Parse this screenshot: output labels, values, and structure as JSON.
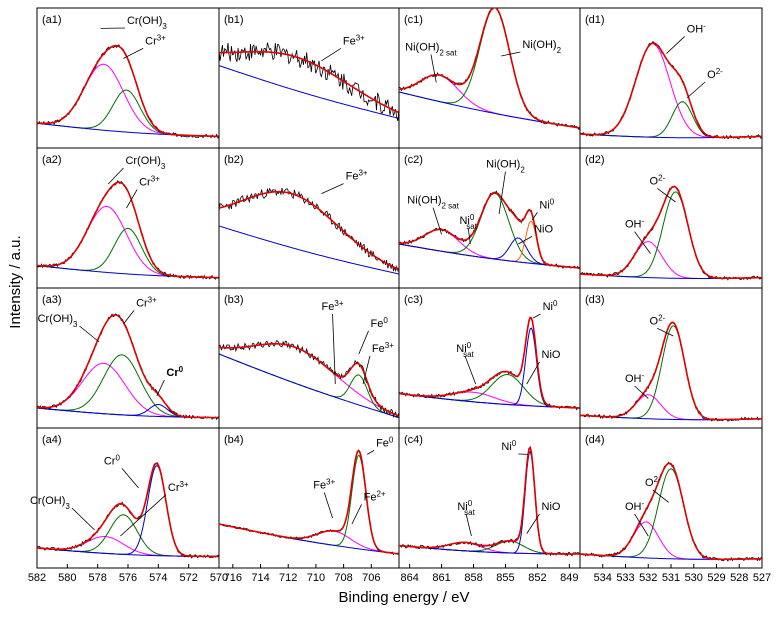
{
  "figure": {
    "ylabel": "Intensity / a.u.",
    "xlabel": "Binding energy / eV"
  },
  "chart_data": [
    {
      "id": "a",
      "type": "line",
      "xlim": [
        582,
        570
      ],
      "xticks": [
        "582",
        "580",
        "578",
        "576",
        "574",
        "572",
        "570"
      ],
      "rows": [
        {
          "label": "(a1)",
          "annotations": [
            {
              "text": "Cr(OH)",
              "sub": "3",
              "sup": "",
              "x": 577.8,
              "y": 0.93,
              "tx": 576.2,
              "ty": 0.95,
              "pos": "right"
            },
            {
              "text": "Cr",
              "sub": "",
              "sup": "3+",
              "x": 576.3,
              "y": 0.68,
              "tx": 575.0,
              "ty": 0.78,
              "pos": "right"
            }
          ],
          "peaks": [
            {
              "c": 577.6,
              "w": 1.3,
              "a": 0.55
            },
            {
              "c": 576.1,
              "w": 0.9,
              "a": 0.35
            }
          ],
          "bg": [
            0.14,
            0.03
          ]
        },
        {
          "label": "(a2)",
          "annotations": [
            {
              "text": "Cr(OH)",
              "sub": "3",
              "sup": "",
              "x": 577.3,
              "y": 0.8,
              "tx": 576.3,
              "ty": 0.95,
              "pos": "right"
            },
            {
              "text": "Cr",
              "sub": "",
              "sup": "3+",
              "x": 576.1,
              "y": 0.6,
              "tx": 575.4,
              "ty": 0.77,
              "pos": "right"
            }
          ],
          "peaks": [
            {
              "c": 577.4,
              "w": 1.3,
              "a": 0.55
            },
            {
              "c": 576.0,
              "w": 0.9,
              "a": 0.38
            }
          ],
          "bg": [
            0.12,
            0.02
          ]
        },
        {
          "label": "(a3)",
          "annotations": [
            {
              "text": "Cr(OH)",
              "sub": "3",
              "sup": "",
              "x": 577.9,
              "y": 0.65,
              "tx": 579.2,
              "ty": 0.8,
              "pos": "left"
            },
            {
              "text": "Cr",
              "sub": "",
              "sup": "3+",
              "x": 576.3,
              "y": 0.8,
              "tx": 575.6,
              "ty": 0.93,
              "pos": "right"
            },
            {
              "text": "Cr",
              "sub": "",
              "sup": "0",
              "x": 574.1,
              "y": 0.2,
              "tx": 573.6,
              "ty": 0.35,
              "pos": "right",
              "bold": true
            }
          ],
          "peaks": [
            {
              "c": 577.6,
              "w": 1.4,
              "a": 0.42
            },
            {
              "c": 576.4,
              "w": 1.2,
              "a": 0.5
            },
            {
              "c": 574.0,
              "w": 0.6,
              "a": 0.1
            }
          ],
          "bg": [
            0.1,
            0.02
          ]
        },
        {
          "label": "(a4)",
          "annotations": [
            {
              "text": "Cr(OH)",
              "sub": "3",
              "sup": "",
              "x": 578.2,
              "y": 0.25,
              "tx": 579.7,
              "ty": 0.45,
              "pos": "left"
            },
            {
              "text": "Cr",
              "sub": "",
              "sup": "0",
              "x": 575.3,
              "y": 0.6,
              "tx": 576.4,
              "ty": 0.78,
              "pos": "left"
            },
            {
              "text": "Cr",
              "sub": "",
              "sup": "3+",
              "x": 576.5,
              "y": 0.2,
              "tx": 573.5,
              "ty": 0.56,
              "pos": "right"
            }
          ],
          "peaks": [
            {
              "c": 577.5,
              "w": 1.2,
              "a": 0.14
            },
            {
              "c": 576.3,
              "w": 0.9,
              "a": 0.33
            },
            {
              "c": 574.1,
              "w": 0.6,
              "a": 0.75
            }
          ],
          "bg": [
            0.1,
            0.03
          ]
        }
      ]
    },
    {
      "id": "b",
      "type": "line",
      "xlim": [
        717,
        704
      ],
      "xticks": [
        "716",
        "714",
        "712",
        "710",
        "708",
        "706"
      ],
      "rows": [
        {
          "label": "(b1)",
          "annotations": [
            {
              "text": "Fe",
              "sub": "",
              "sup": "3+",
              "x": 709.6,
              "y": 0.66,
              "tx": 708.2,
              "ty": 0.78,
              "pos": "right"
            }
          ],
          "peaks": [
            {
              "c": 711.5,
              "w": 4.0,
              "a": 0.28
            }
          ],
          "bg": [
            0.62,
            0.18
          ],
          "noise": 0.08
        },
        {
          "label": "(b2)",
          "annotations": [
            {
              "text": "Fe",
              "sub": "",
              "sup": "3+",
              "x": 709.6,
              "y": 0.72,
              "tx": 708.0,
              "ty": 0.82,
              "pos": "right"
            }
          ],
          "peaks": [
            {
              "c": 711.8,
              "w": 3.5,
              "a": 0.45
            }
          ],
          "bg": [
            0.45,
            0.05
          ],
          "noise": 0.04
        },
        {
          "label": "(b3)",
          "annotations": [
            {
              "text": "Fe",
              "sub": "",
              "sup": "3+",
              "x": 708.6,
              "y": 0.3,
              "tx": 708.8,
              "ty": 0.9,
              "pos": "center"
            },
            {
              "text": "Fe",
              "sub": "",
              "sup": "0",
              "x": 706.9,
              "y": 0.55,
              "tx": 706.2,
              "ty": 0.76,
              "pos": "right"
            },
            {
              "text": "Fe",
              "sub": "",
              "sup": "3+",
              "x": 706.6,
              "y": 0.3,
              "tx": 706.1,
              "ty": 0.55,
              "pos": "right"
            }
          ],
          "peaks": [
            {
              "c": 711.5,
              "w": 3.0,
              "a": 0.3
            },
            {
              "c": 706.9,
              "w": 0.6,
              "a": 0.25
            }
          ],
          "bg": [
            0.55,
            0.02
          ],
          "noise": 0.03
        },
        {
          "label": "(b4)",
          "annotations": [
            {
              "text": "Fe",
              "sub": "",
              "sup": "3+",
              "x": 708.8,
              "y": 0.35,
              "tx": 709.4,
              "ty": 0.58,
              "pos": "center"
            },
            {
              "text": "Fe",
              "sub": "",
              "sup": "2+",
              "x": 707.4,
              "y": 0.3,
              "tx": 706.7,
              "ty": 0.48,
              "pos": "right"
            },
            {
              "text": "Fe",
              "sub": "",
              "sup": "0",
              "x": 706.3,
              "y": 0.88,
              "tx": 705.8,
              "ty": 0.93,
              "pos": "right"
            }
          ],
          "peaks": [
            {
              "c": 708.7,
              "w": 1.2,
              "a": 0.12
            },
            {
              "c": 706.9,
              "w": 0.5,
              "a": 0.78
            }
          ],
          "bg": [
            0.3,
            0.05
          ],
          "noise": 0.01
        }
      ]
    },
    {
      "id": "c",
      "type": "line",
      "xlim": [
        865,
        848
      ],
      "xticks": [
        "864",
        "861",
        "858",
        "855",
        "852",
        "849"
      ],
      "rows": [
        {
          "label": "(c1)",
          "annotations": [
            {
              "text": "Ni(OH)",
              "sub": "2 sat",
              "sup": "",
              "x": 861.5,
              "y": 0.48,
              "tx": 862.0,
              "ty": 0.73,
              "pos": "center"
            },
            {
              "text": "Ni(OH)",
              "sub": "2",
              "sup": "",
              "x": 855.4,
              "y": 0.7,
              "tx": 853.6,
              "ty": 0.75,
              "pos": "right"
            }
          ],
          "peaks": [
            {
              "c": 861.2,
              "w": 1.8,
              "a": 0.22
            },
            {
              "c": 856.0,
              "w": 1.4,
              "a": 0.88
            }
          ],
          "bg": [
            0.4,
            0.1
          ]
        },
        {
          "label": "(c2)",
          "annotations": [
            {
              "text": "Ni(OH)",
              "sub": "2 sat",
              "sup": "",
              "x": 861.0,
              "y": 0.38,
              "tx": 861.8,
              "ty": 0.62,
              "pos": "center"
            },
            {
              "text": "Ni(OH)",
              "sub": "2",
              "sup": "",
              "x": 855.6,
              "y": 0.55,
              "tx": 855.0,
              "ty": 0.92,
              "pos": "center"
            },
            {
              "text": "Ni",
              "sub": "sat",
              "sup": "0",
              "x": 858.3,
              "y": 0.3,
              "tx": 858.5,
              "ty": 0.45,
              "pos": "center"
            },
            {
              "text": "Ni",
              "sub": "",
              "sup": "0",
              "x": 852.5,
              "y": 0.5,
              "tx": 852.0,
              "ty": 0.58,
              "pos": "right"
            },
            {
              "text": "NiO",
              "sub": "",
              "sup": "",
              "x": 853.8,
              "y": 0.3,
              "tx": 852.5,
              "ty": 0.38,
              "pos": "right"
            }
          ],
          "peaks": [
            {
              "c": 861.0,
              "w": 1.6,
              "a": 0.18
            },
            {
              "c": 856.0,
              "w": 1.3,
              "a": 0.55
            },
            {
              "c": 853.8,
              "w": 0.8,
              "a": 0.2
            },
            {
              "c": 852.6,
              "w": 0.5,
              "a": 0.35
            }
          ],
          "bg": [
            0.3,
            0.1
          ]
        },
        {
          "label": "(c3)",
          "annotations": [
            {
              "text": "Ni",
              "sub": "sat",
              "sup": "0",
              "x": 857.8,
              "y": 0.3,
              "tx": 858.8,
              "ty": 0.55,
              "pos": "center"
            },
            {
              "text": "Ni",
              "sub": "",
              "sup": "0",
              "x": 852.4,
              "y": 0.85,
              "tx": 851.7,
              "ty": 0.9,
              "pos": "right"
            },
            {
              "text": "NiO",
              "sub": "",
              "sup": "",
              "x": 853.0,
              "y": 0.3,
              "tx": 851.8,
              "ty": 0.5,
              "pos": "right"
            }
          ],
          "peaks": [
            {
              "c": 858.0,
              "w": 2.0,
              "a": 0.08
            },
            {
              "c": 854.8,
              "w": 1.5,
              "a": 0.25
            },
            {
              "c": 852.6,
              "w": 0.5,
              "a": 0.65
            }
          ],
          "bg": [
            0.22,
            0.1
          ]
        },
        {
          "label": "(c4)",
          "annotations": [
            {
              "text": "Ni",
              "sub": "sat",
              "sup": "0",
              "x": 858.2,
              "y": 0.2,
              "tx": 858.7,
              "ty": 0.4,
              "pos": "center"
            },
            {
              "text": "Ni",
              "sub": "",
              "sup": "0",
              "x": 852.9,
              "y": 0.88,
              "tx": 853.8,
              "ty": 0.9,
              "pos": "left"
            },
            {
              "text": "NiO",
              "sub": "",
              "sup": "",
              "x": 853.0,
              "y": 0.22,
              "tx": 851.8,
              "ty": 0.4,
              "pos": "right"
            }
          ],
          "peaks": [
            {
              "c": 858.8,
              "w": 1.5,
              "a": 0.07
            },
            {
              "c": 854.6,
              "w": 1.3,
              "a": 0.1
            },
            {
              "c": 852.7,
              "w": 0.45,
              "a": 0.85
            }
          ],
          "bg": [
            0.12,
            0.05
          ]
        }
      ]
    },
    {
      "id": "d",
      "type": "line",
      "xlim": [
        535,
        527
      ],
      "xticks": [
        "534",
        "533",
        "532",
        "531",
        "530",
        "529",
        "528",
        "527"
      ],
      "rows": [
        {
          "label": "(d1)",
          "annotations": [
            {
              "text": "OH",
              "sub": "",
              "sup": "-",
              "x": 531.2,
              "y": 0.72,
              "tx": 530.4,
              "ty": 0.88,
              "pos": "right"
            },
            {
              "text": "O",
              "sub": "",
              "sup": "2-",
              "x": 530.3,
              "y": 0.35,
              "tx": 529.5,
              "ty": 0.5,
              "pos": "right"
            }
          ],
          "peaks": [
            {
              "c": 531.8,
              "w": 0.75,
              "a": 0.78
            },
            {
              "c": 530.5,
              "w": 0.45,
              "a": 0.3
            }
          ],
          "bg": [
            0.05,
            0.03
          ]
        },
        {
          "label": "(d2)",
          "annotations": [
            {
              "text": "O",
              "sub": "",
              "sup": "2-",
              "x": 530.8,
              "y": 0.65,
              "tx": 531.6,
              "ty": 0.78,
              "pos": "center"
            },
            {
              "text": "OH",
              "sub": "",
              "sup": "-",
              "x": 531.9,
              "y": 0.22,
              "tx": 532.6,
              "ty": 0.42,
              "pos": "center"
            }
          ],
          "peaks": [
            {
              "c": 532.0,
              "w": 0.6,
              "a": 0.3
            },
            {
              "c": 530.8,
              "w": 0.55,
              "a": 0.72
            }
          ],
          "bg": [
            0.05,
            0.02
          ]
        },
        {
          "label": "(d3)",
          "annotations": [
            {
              "text": "O",
              "sub": "",
              "sup": "2-",
              "x": 530.9,
              "y": 0.7,
              "tx": 531.6,
              "ty": 0.78,
              "pos": "center"
            },
            {
              "text": "OH",
              "sub": "",
              "sup": "-",
              "x": 532.0,
              "y": 0.18,
              "tx": 532.6,
              "ty": 0.3,
              "pos": "center"
            }
          ],
          "peaks": [
            {
              "c": 532.0,
              "w": 0.55,
              "a": 0.2
            },
            {
              "c": 530.9,
              "w": 0.5,
              "a": 0.78
            }
          ],
          "bg": [
            0.04,
            0.01
          ]
        },
        {
          "label": "(d4)",
          "annotations": [
            {
              "text": "O",
              "sub": "",
              "sup": "2-",
              "x": 531.1,
              "y": 0.48,
              "tx": 531.8,
              "ty": 0.6,
              "pos": "center"
            },
            {
              "text": "OH",
              "sub": "",
              "sup": "-",
              "x": 532.0,
              "y": 0.2,
              "tx": 532.6,
              "ty": 0.4,
              "pos": "center"
            }
          ],
          "peaks": [
            {
              "c": 532.1,
              "w": 0.55,
              "a": 0.3
            },
            {
              "c": 531.0,
              "w": 0.55,
              "a": 0.75
            }
          ],
          "bg": [
            0.05,
            0.01
          ]
        }
      ]
    }
  ],
  "colors": {
    "raw": "#000000",
    "envelope": "#e00000",
    "component_a": "#ff00ff",
    "component_b": "#007000",
    "component_c": "#0000cc",
    "component_d": "#ff6600",
    "background": "#0000cc"
  }
}
